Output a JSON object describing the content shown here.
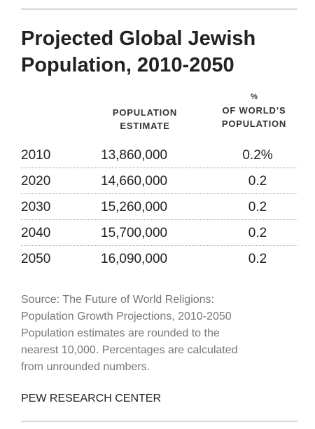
{
  "title_line1": "Projected Global Jewish",
  "title_line2": "Population, 2010-2050",
  "columns": {
    "population_line1": "POPULATION",
    "population_line2": "ESTIMATE",
    "percent_symbol": "%",
    "percent_line1": "OF WORLD’S",
    "percent_line2": "POPULATION"
  },
  "rows": [
    {
      "year": "2010",
      "population": "13,860,000",
      "percent": "0.2%"
    },
    {
      "year": "2020",
      "population": "14,660,000",
      "percent": "0.2"
    },
    {
      "year": "2030",
      "population": "15,260,000",
      "percent": "0.2"
    },
    {
      "year": "2040",
      "population": "15,700,000",
      "percent": "0.2"
    },
    {
      "year": "2050",
      "population": "16,090,000",
      "percent": "0.2"
    }
  ],
  "source_lines": [
    "Source: The Future of World Religions:",
    "Population Growth Projections, 2010-2050",
    "Population estimates are rounded to the",
    "nearest 10,000. Percentages are calculated",
    "from unrounded numbers."
  ],
  "credit": "PEW RESEARCH CENTER",
  "colors": {
    "text": "#222222",
    "source_text": "#777777",
    "rule": "#d9d9d9",
    "row_divider": "#9a9a9a"
  },
  "chart_data": {
    "type": "table",
    "columns": [
      "",
      "POPULATION ESTIMATE",
      "% OF WORLD’S POPULATION"
    ],
    "categories": [
      "2010",
      "2020",
      "2030",
      "2040",
      "2050"
    ],
    "series": [
      {
        "name": "POPULATION ESTIMATE",
        "values": [
          13860000,
          14660000,
          15260000,
          15700000,
          16090000
        ]
      },
      {
        "name": "% OF WORLD’S POPULATION",
        "values": [
          0.2,
          0.2,
          0.2,
          0.2,
          0.2
        ]
      }
    ]
  }
}
